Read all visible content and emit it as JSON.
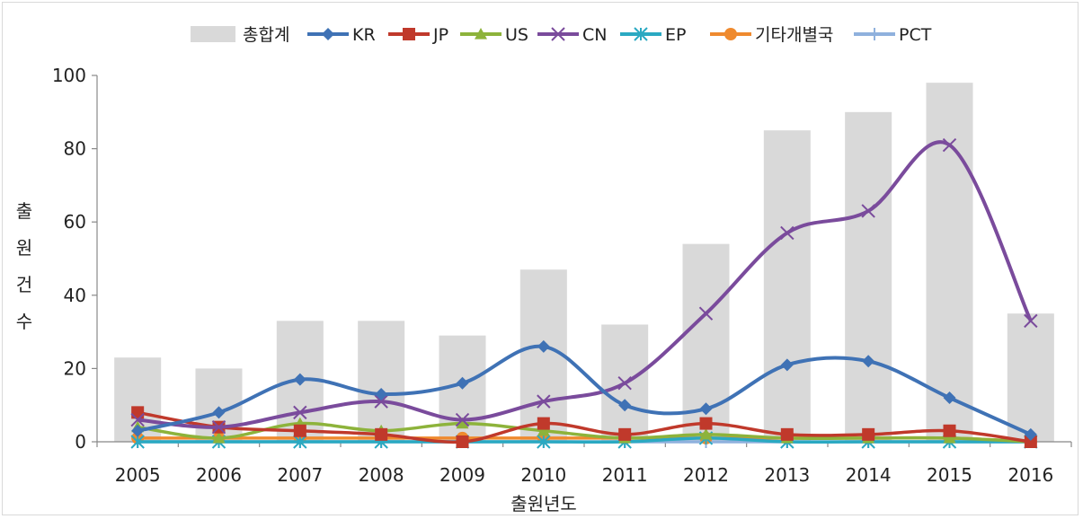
{
  "chart_data": {
    "type": "bar+line",
    "categories": [
      "2005",
      "2006",
      "2007",
      "2008",
      "2009",
      "2010",
      "2011",
      "2012",
      "2013",
      "2014",
      "2015",
      "2016"
    ],
    "bar_series": {
      "name": "총합계",
      "color": "#d9d9d9",
      "values": [
        23,
        20,
        33,
        33,
        29,
        47,
        32,
        54,
        85,
        90,
        98,
        35
      ]
    },
    "series": [
      {
        "name": "KR",
        "color": "#3f72b5",
        "marker": "diamond",
        "values": [
          3,
          8,
          17,
          13,
          16,
          26,
          10,
          9,
          21,
          22,
          12,
          2
        ]
      },
      {
        "name": "JP",
        "color": "#c0392b",
        "marker": "square",
        "values": [
          8,
          4,
          3,
          2,
          0,
          5,
          2,
          5,
          2,
          2,
          3,
          0
        ]
      },
      {
        "name": "US",
        "color": "#8db33b",
        "marker": "triangle",
        "values": [
          4,
          1,
          5,
          3,
          5,
          3,
          1,
          2,
          1,
          1,
          1,
          0
        ]
      },
      {
        "name": "CN",
        "color": "#7a4b9c",
        "marker": "x",
        "values": [
          6,
          4,
          8,
          11,
          6,
          11,
          16,
          35,
          57,
          63,
          81,
          33
        ]
      },
      {
        "name": "EP",
        "color": "#2aa9c2",
        "marker": "star",
        "values": [
          0,
          0,
          0,
          0,
          0,
          0,
          0,
          1,
          0,
          0,
          0,
          0
        ]
      },
      {
        "name": "기타개별국",
        "color": "#ef8a2e",
        "marker": "circle",
        "values": [
          1,
          1,
          1,
          1,
          1,
          1,
          1,
          1,
          1,
          1,
          1,
          0
        ]
      },
      {
        "name": "PCT",
        "color": "#8fb1dd",
        "marker": "plus",
        "values": [
          0,
          0,
          0,
          0,
          0,
          0,
          0,
          0,
          0,
          0,
          0,
          0
        ]
      }
    ],
    "xlabel": "출원년도",
    "ylabel": "출원건수",
    "ylabel_chars": [
      "출",
      "원",
      "건",
      "수"
    ],
    "ylim": [
      0,
      100
    ],
    "yticks": [
      "0",
      "20",
      "40",
      "60",
      "80",
      "100"
    ],
    "grid": false,
    "legend": "top"
  }
}
